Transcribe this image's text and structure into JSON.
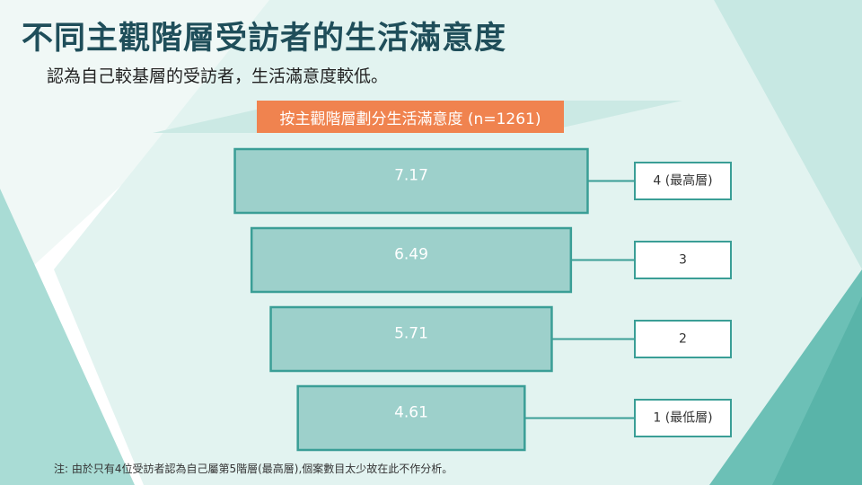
{
  "page": {
    "title": "不同主觀階層受訪者的生活滿意度",
    "subtitle": "認為自己較基層的受訪者，生活滿意度較低。",
    "note": "注: 由於只有4位受訪者認為自己屬第5階層(最高層),個案數目太少故在此不作分析。"
  },
  "colors": {
    "bar_fill": "#9dd0cb",
    "bar_stroke": "#3a9e96",
    "header_bg": "#f0834f",
    "title": "#1f4e5a"
  },
  "chart_data": {
    "type": "bar",
    "orientation": "horizontal",
    "title": "按主觀階層劃分生活滿意度 (n=1261)",
    "categories": [
      "4 (最高層)",
      "3",
      "2",
      "1 (最低層)"
    ],
    "values": [
      7.17,
      6.49,
      5.71,
      4.61
    ],
    "value_labels": [
      "7.17",
      "6.49",
      "5.71",
      "4.61"
    ],
    "bars_centered": true,
    "legend": "none",
    "grid": false
  }
}
